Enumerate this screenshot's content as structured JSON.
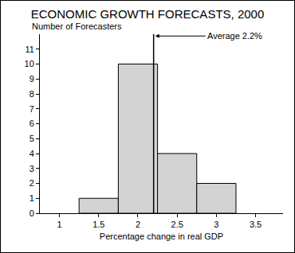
{
  "chart_data": {
    "type": "histogram",
    "title": "ECONOMIC GROWTH FORECASTS, 2000",
    "xlabel": "Percentage change in real GDP",
    "ylabel": "Number of Forecasters",
    "bins": [
      1.25,
      1.75,
      2.25,
      2.75,
      3.25
    ],
    "values": [
      1,
      10,
      4,
      2
    ],
    "color": "#d3d3d3",
    "xlim": [
      0.75,
      3.85
    ],
    "xticks": [
      1,
      1.5,
      2,
      2.5,
      3,
      3.5
    ],
    "ylim": [
      0,
      12
    ],
    "yticks": [
      0,
      1,
      2,
      3,
      4,
      5,
      6,
      7,
      8,
      9,
      10,
      11
    ],
    "grid": false,
    "average": {
      "value": 2.2,
      "label": "Average 2.2%"
    }
  }
}
